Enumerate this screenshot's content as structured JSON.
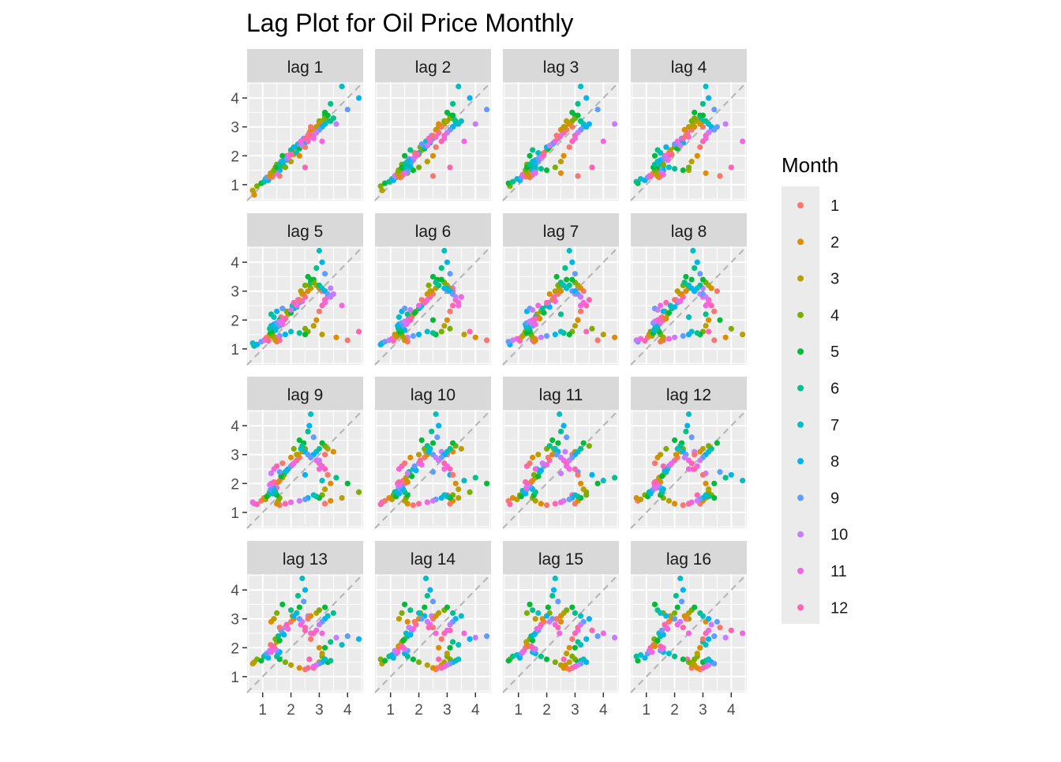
{
  "chart_data": {
    "type": "scatter",
    "title": "Lag Plot for Oil Price Monthly",
    "xlabel": "",
    "ylabel": "",
    "xlim": [
      0.45,
      4.55
    ],
    "ylim": [
      0.45,
      4.55
    ],
    "x_ticks": [
      1,
      2,
      3,
      4
    ],
    "y_ticks": [
      1,
      2,
      3,
      4
    ],
    "grid": true,
    "reference_line": "y = x (dashed)",
    "legend": {
      "title": "Month",
      "placement": "right",
      "items": [
        {
          "label": "1",
          "color": "#F8766D"
        },
        {
          "label": "2",
          "color": "#DE8C00"
        },
        {
          "label": "3",
          "color": "#B79F00"
        },
        {
          "label": "4",
          "color": "#7CAE00"
        },
        {
          "label": "5",
          "color": "#00BA38"
        },
        {
          "label": "6",
          "color": "#00C08B"
        },
        {
          "label": "7",
          "color": "#00BFC4"
        },
        {
          "label": "8",
          "color": "#00B4F0"
        },
        {
          "label": "9",
          "color": "#619CFF"
        },
        {
          "label": "10",
          "color": "#C77CFF"
        },
        {
          "label": "11",
          "color": "#F564E3"
        },
        {
          "label": "12",
          "color": "#FF64B0"
        }
      ]
    },
    "panels": [
      "lag 1",
      "lag 2",
      "lag 3",
      "lag 4",
      "lag 5",
      "lag 6",
      "lag 7",
      "lag 8",
      "lag 9",
      "lag 10",
      "lag 11",
      "lag 12",
      "lag 13",
      "lag 14",
      "lag 15",
      "lag 16"
    ],
    "series_monthly": [
      {
        "month": 1,
        "value": 0.7
      },
      {
        "month": 2,
        "value": 0.65
      },
      {
        "month": 3,
        "value": 0.8
      },
      {
        "month": 4,
        "value": 0.95
      },
      {
        "month": 5,
        "value": 1.05
      },
      {
        "month": 6,
        "value": 1.1
      },
      {
        "month": 7,
        "value": 1.2
      },
      {
        "month": 8,
        "value": 1.15
      },
      {
        "month": 9,
        "value": 1.25
      },
      {
        "month": 10,
        "value": 1.3
      },
      {
        "month": 11,
        "value": 1.35
      },
      {
        "month": 12,
        "value": 1.28
      },
      {
        "month": 1,
        "value": 1.4
      },
      {
        "month": 2,
        "value": 1.5
      },
      {
        "month": 3,
        "value": 1.45
      },
      {
        "month": 4,
        "value": 1.6
      },
      {
        "month": 5,
        "value": 1.55
      },
      {
        "month": 6,
        "value": 1.7
      },
      {
        "month": 7,
        "value": 1.75
      },
      {
        "month": 8,
        "value": 1.65
      },
      {
        "month": 9,
        "value": 1.8
      },
      {
        "month": 10,
        "value": 1.9
      },
      {
        "month": 11,
        "value": 1.85
      },
      {
        "month": 12,
        "value": 2.0
      },
      {
        "month": 1,
        "value": 2.1
      },
      {
        "month": 2,
        "value": 2.05
      },
      {
        "month": 3,
        "value": 2.2
      },
      {
        "month": 4,
        "value": 2.3
      },
      {
        "month": 5,
        "value": 2.25
      },
      {
        "month": 6,
        "value": 2.4
      },
      {
        "month": 7,
        "value": 2.5
      },
      {
        "month": 8,
        "value": 2.45
      },
      {
        "month": 9,
        "value": 2.6
      },
      {
        "month": 10,
        "value": 2.7
      },
      {
        "month": 11,
        "value": 2.65
      },
      {
        "month": 12,
        "value": 2.8
      },
      {
        "month": 1,
        "value": 2.9
      },
      {
        "month": 2,
        "value": 3.0
      },
      {
        "month": 3,
        "value": 3.1
      },
      {
        "month": 4,
        "value": 3.2
      },
      {
        "month": 5,
        "value": 3.4
      },
      {
        "month": 6,
        "value": 3.8
      },
      {
        "month": 7,
        "value": 4.4
      },
      {
        "month": 8,
        "value": 4.0
      },
      {
        "month": 9,
        "value": 3.6
      },
      {
        "month": 10,
        "value": 3.1
      },
      {
        "month": 11,
        "value": 2.5
      },
      {
        "month": 12,
        "value": 1.6
      },
      {
        "month": 1,
        "value": 1.3
      },
      {
        "month": 2,
        "value": 1.4
      },
      {
        "month": 3,
        "value": 1.5
      },
      {
        "month": 4,
        "value": 1.7
      },
      {
        "month": 5,
        "value": 2.0
      },
      {
        "month": 6,
        "value": 2.2
      },
      {
        "month": 7,
        "value": 2.1
      },
      {
        "month": 8,
        "value": 2.3
      },
      {
        "month": 9,
        "value": 2.4
      },
      {
        "month": 10,
        "value": 2.35
      },
      {
        "month": 11,
        "value": 2.5
      },
      {
        "month": 12,
        "value": 2.6
      },
      {
        "month": 1,
        "value": 2.7
      },
      {
        "month": 2,
        "value": 2.9
      },
      {
        "month": 3,
        "value": 3.0
      },
      {
        "month": 4,
        "value": 3.2
      },
      {
        "month": 5,
        "value": 3.5
      },
      {
        "month": 6,
        "value": 3.3
      },
      {
        "month": 7,
        "value": 3.2
      },
      {
        "month": 8,
        "value": 3.1
      },
      {
        "month": 9,
        "value": 3.0
      },
      {
        "month": 10,
        "value": 2.9
      },
      {
        "month": 11,
        "value": 2.8
      },
      {
        "month": 12,
        "value": 2.7
      },
      {
        "month": 1,
        "value": 3.0
      },
      {
        "month": 2,
        "value": 3.1
      },
      {
        "month": 3,
        "value": 3.2
      },
      {
        "month": 4,
        "value": 3.3
      },
      {
        "month": 5,
        "value": 3.4
      },
      {
        "month": 6,
        "value": 3.2
      },
      {
        "month": 7,
        "value": 3.1
      },
      {
        "month": 8,
        "value": 3.0
      },
      {
        "month": 9,
        "value": 2.9
      },
      {
        "month": 10,
        "value": 2.8
      },
      {
        "month": 11,
        "value": 2.6
      },
      {
        "month": 12,
        "value": 2.5
      },
      {
        "month": 1,
        "value": 2.3
      },
      {
        "month": 2,
        "value": 2.0
      },
      {
        "month": 3,
        "value": 1.8
      },
      {
        "month": 4,
        "value": 1.6
      },
      {
        "month": 5,
        "value": 1.5
      },
      {
        "month": 6,
        "value": 1.55
      },
      {
        "month": 7,
        "value": 1.6
      },
      {
        "month": 8,
        "value": 1.5
      },
      {
        "month": 9,
        "value": 1.45
      },
      {
        "month": 10,
        "value": 1.4
      },
      {
        "month": 11,
        "value": 1.35
      },
      {
        "month": 12,
        "value": 1.3
      },
      {
        "month": 1,
        "value": 1.25
      },
      {
        "month": 2,
        "value": 1.3
      },
      {
        "month": 3,
        "value": 1.4
      },
      {
        "month": 4,
        "value": 1.5
      },
      {
        "month": 5,
        "value": 1.6
      },
      {
        "month": 6,
        "value": 1.7
      },
      {
        "month": 7,
        "value": 1.8
      },
      {
        "month": 8,
        "value": 1.85
      },
      {
        "month": 9,
        "value": 1.9
      },
      {
        "month": 10,
        "value": 1.95
      },
      {
        "month": 11,
        "value": 2.0
      },
      {
        "month": 12,
        "value": 2.05
      }
    ]
  }
}
